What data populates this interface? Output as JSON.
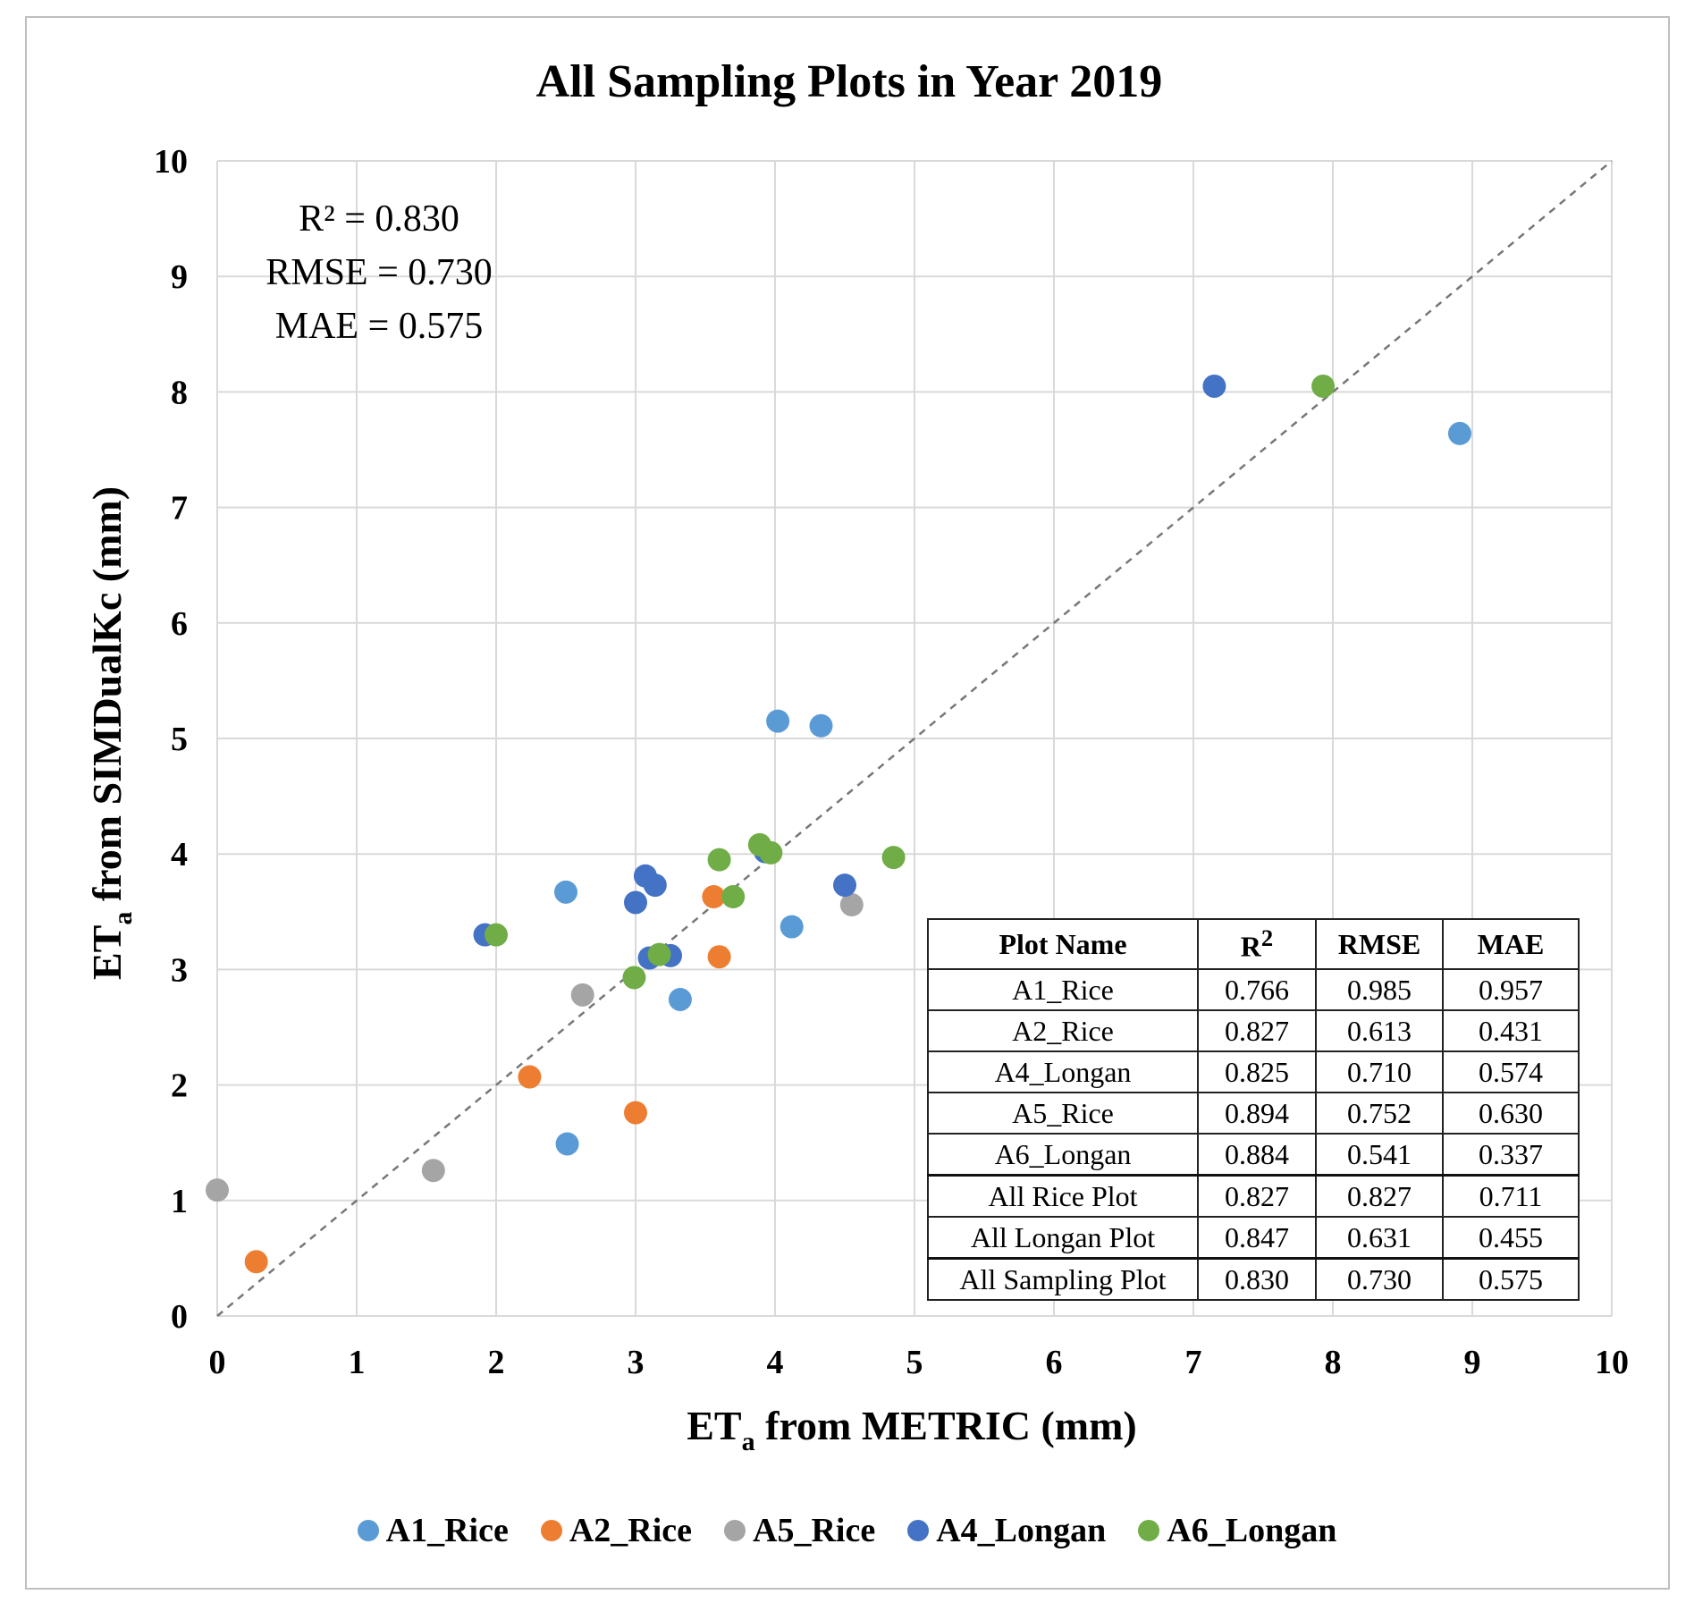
{
  "colors": {
    "A1_Rice": "#5b9bd5",
    "A2_Rice": "#ed7d31",
    "A5_Rice": "#a5a5a5",
    "A4_Longan": "#4472c4",
    "A6_Longan": "#70ad47"
  },
  "chart_data": {
    "type": "scatter",
    "title": "All Sampling Plots in Year 2019",
    "xlabel": "ET",
    "xlabel_sub": "a",
    "xlabel_rest": " from METRIC (mm)",
    "ylabel": "ET",
    "ylabel_sub": "a",
    "ylabel_rest": " from SIMDualKc (mm)",
    "xlim": [
      0,
      10
    ],
    "ylim": [
      0,
      10
    ],
    "xticks": [
      "0",
      "1",
      "2",
      "3",
      "4",
      "5",
      "6",
      "7",
      "8",
      "9",
      "10"
    ],
    "yticks": [
      "0",
      "1",
      "2",
      "3",
      "4",
      "5",
      "6",
      "7",
      "8",
      "9",
      "10"
    ],
    "grid": true,
    "reference_line": "1:1",
    "stats": {
      "r2": "R² = 0.830",
      "rmse": "RMSE = 0.730",
      "mae": "MAE = 0.575"
    },
    "series": [
      {
        "name": "A1_Rice",
        "points": [
          [
            2.5,
            3.67
          ],
          [
            4.02,
            5.15
          ],
          [
            4.33,
            5.11
          ],
          [
            4.12,
            3.37
          ],
          [
            3.32,
            2.74
          ],
          [
            2.51,
            1.49
          ],
          [
            8.91,
            7.64
          ]
        ]
      },
      {
        "name": "A2_Rice",
        "points": [
          [
            3.56,
            3.63
          ],
          [
            3.6,
            3.11
          ],
          [
            2.24,
            2.07
          ],
          [
            3.0,
            1.76
          ],
          [
            0.28,
            0.47
          ]
        ]
      },
      {
        "name": "A5_Rice",
        "points": [
          [
            4.55,
            3.56
          ],
          [
            2.62,
            2.78
          ],
          [
            1.55,
            1.26
          ],
          [
            0.0,
            1.09
          ]
        ]
      },
      {
        "name": "A4_Longan",
        "points": [
          [
            1.92,
            3.3
          ],
          [
            3.0,
            3.58
          ],
          [
            3.07,
            3.81
          ],
          [
            3.14,
            3.73
          ],
          [
            3.1,
            3.1
          ],
          [
            3.25,
            3.12
          ],
          [
            3.93,
            4.02
          ],
          [
            4.5,
            3.73
          ],
          [
            7.15,
            8.05
          ]
        ]
      },
      {
        "name": "A6_Longan",
        "points": [
          [
            2.0,
            3.3
          ],
          [
            2.99,
            2.93
          ],
          [
            3.17,
            3.13
          ],
          [
            3.6,
            3.95
          ],
          [
            3.7,
            3.63
          ],
          [
            3.89,
            4.08
          ],
          [
            3.97,
            4.01
          ],
          [
            4.85,
            3.97
          ],
          [
            7.93,
            8.05
          ]
        ]
      }
    ],
    "legend": [
      "A1_Rice",
      "A2_Rice",
      "A5_Rice",
      "A4_Longan",
      "A6_Longan"
    ],
    "legend_position": "bottom-center"
  },
  "table": {
    "headers": [
      "Plot Name",
      "R",
      "RMSE",
      "MAE"
    ],
    "header_sup": "2",
    "rows": [
      [
        "A1_Rice",
        "0.766",
        "0.985",
        "0.957"
      ],
      [
        "A2_Rice",
        "0.827",
        "0.613",
        "0.431"
      ],
      [
        "A4_Longan",
        "0.825",
        "0.710",
        "0.574"
      ],
      [
        "A5_Rice",
        "0.894",
        "0.752",
        "0.630"
      ],
      [
        "A6_Longan",
        "0.884",
        "0.541",
        "0.337"
      ],
      [
        "All Rice Plot",
        "0.827",
        "0.827",
        "0.711"
      ],
      [
        "All Longan Plot",
        "0.847",
        "0.631",
        "0.455"
      ],
      [
        "All Sampling Plot",
        "0.830",
        "0.730",
        "0.575"
      ]
    ]
  }
}
